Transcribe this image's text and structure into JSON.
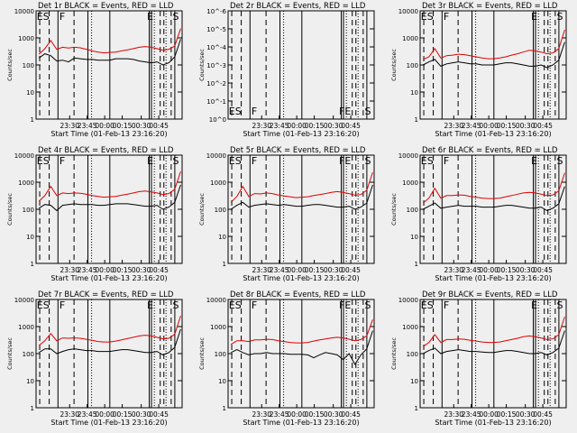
{
  "figure": {
    "background": "#efefef",
    "events_color": "#000000",
    "lld_color": "#e00000",
    "xlabel_template": "Start Time (01-Feb-13 23:16:20)",
    "ylabel": "Counts/sec"
  },
  "chart_data": [
    {
      "type": "line",
      "title": "Det 1r BLACK = Events, RED = LLD",
      "xlabel": "Start Time (01-Feb-13 23:16:20)",
      "ylabel": "Counts/sec",
      "x_ticks": [
        "23:30",
        "23:45",
        "00:00",
        "00:15",
        "00:30",
        "00:45"
      ],
      "y_ticks": [
        "1",
        "10",
        "100",
        "1000",
        "10000"
      ],
      "ylog": true,
      "ylim": [
        1,
        10000
      ],
      "empty": false,
      "event_labels": [
        "ES",
        "F",
        "E",
        "S"
      ],
      "series": [
        {
          "name": "Events",
          "values": [
            180,
            260,
            220,
            140,
            150,
            130,
            180,
            170,
            160,
            160,
            150,
            150,
            150,
            170,
            170,
            170,
            160,
            140,
            130,
            120,
            130,
            100,
            120,
            200,
            900
          ]
        },
        {
          "name": "LLD",
          "values": [
            250,
            400,
            800,
            380,
            450,
            420,
            450,
            430,
            380,
            330,
            300,
            280,
            290,
            300,
            330,
            360,
            400,
            450,
            480,
            450,
            400,
            350,
            380,
            500,
            2200
          ]
        }
      ]
    },
    {
      "type": "line",
      "title": "Det 2r BLACK = Events, RED = LLD",
      "xlabel": "Start Time (01-Feb-13 23:16:20)",
      "ylabel": "Counts/sec",
      "x_ticks": [
        "23:30",
        "23:45",
        "00:00",
        "00:15",
        "00:30",
        "00:45"
      ],
      "y_ticks": [
        "10^0",
        "10^-1",
        "10^-2",
        "10^-3",
        "10^-4",
        "10^-5",
        "10^-6"
      ],
      "ylog": true,
      "empty": true,
      "event_labels": [
        "ES",
        "F",
        "FE",
        "S"
      ],
      "series": []
    },
    {
      "type": "line",
      "title": "Det 3r BLACK = Events, RED = LLD",
      "xlabel": "Start Time (01-Feb-13 23:16:20)",
      "ylabel": "Counts/sec",
      "x_ticks": [
        "23:30",
        "23:45",
        "00:00",
        "00:15",
        "00:30",
        "00:45"
      ],
      "y_ticks": [
        "1",
        "10",
        "100",
        "1000",
        "10000"
      ],
      "ylog": true,
      "ylim": [
        1,
        10000
      ],
      "empty": false,
      "event_labels": [
        "ES",
        "F",
        "E",
        "S"
      ],
      "series": [
        {
          "name": "Events",
          "values": [
            100,
            130,
            160,
            90,
            110,
            120,
            130,
            120,
            110,
            110,
            100,
            100,
            100,
            110,
            120,
            120,
            110,
            100,
            90,
            90,
            100,
            80,
            100,
            150,
            700
          ]
        },
        {
          "name": "LLD",
          "values": [
            160,
            200,
            400,
            180,
            220,
            230,
            250,
            240,
            220,
            200,
            180,
            170,
            170,
            180,
            200,
            230,
            260,
            300,
            350,
            330,
            300,
            260,
            280,
            400,
            2000
          ]
        }
      ]
    },
    {
      "type": "line",
      "title": "Det 4r BLACK = Events, RED = LLD",
      "xlabel": "Start Time (01-Feb-13 23:16:20)",
      "ylabel": "Counts/sec",
      "x_ticks": [
        "23:30",
        "23:45",
        "00:00",
        "00:15",
        "00:30",
        "00:45"
      ],
      "y_ticks": [
        "1",
        "10",
        "100",
        "1000",
        "10000"
      ],
      "ylog": true,
      "ylim": [
        1,
        10000
      ],
      "empty": false,
      "event_labels": [
        "ES",
        "F",
        "E",
        "S"
      ],
      "series": [
        {
          "name": "Events",
          "values": [
            110,
            150,
            140,
            90,
            140,
            150,
            160,
            150,
            150,
            150,
            140,
            140,
            150,
            160,
            160,
            160,
            150,
            140,
            130,
            130,
            140,
            100,
            120,
            180,
            800
          ]
        },
        {
          "name": "LLD",
          "values": [
            200,
            320,
            700,
            320,
            400,
            380,
            400,
            390,
            360,
            320,
            300,
            280,
            290,
            300,
            330,
            360,
            400,
            450,
            470,
            440,
            400,
            350,
            380,
            550,
            2500
          ]
        }
      ]
    },
    {
      "type": "line",
      "title": "Det 5r BLACK = Events, RED = LLD",
      "xlabel": "Start Time (01-Feb-13 23:16:20)",
      "ylabel": "Counts/sec",
      "x_ticks": [
        "23:30",
        "23:45",
        "00:00",
        "00:15",
        "00:30",
        "00:45"
      ],
      "y_ticks": [
        "1",
        "10",
        "100",
        "1000",
        "10000"
      ],
      "ylog": true,
      "ylim": [
        1,
        10000
      ],
      "empty": false,
      "event_labels": [
        "ES",
        "F",
        "FE",
        "S"
      ],
      "series": [
        {
          "name": "Events",
          "values": [
            100,
            140,
            180,
            120,
            140,
            150,
            160,
            150,
            140,
            150,
            140,
            130,
            130,
            140,
            150,
            150,
            140,
            130,
            120,
            120,
            130,
            100,
            120,
            170,
            800
          ]
        },
        {
          "name": "LLD",
          "values": [
            180,
            300,
            700,
            300,
            380,
            370,
            400,
            380,
            340,
            310,
            290,
            270,
            280,
            290,
            320,
            350,
            380,
            420,
            450,
            420,
            380,
            330,
            350,
            500,
            2300
          ]
        }
      ]
    },
    {
      "type": "line",
      "title": "Det 6r BLACK = Events, RED = LLD",
      "xlabel": "Start Time (01-Feb-13 23:16:20)",
      "ylabel": "Counts/sec",
      "x_ticks": [
        "23:30",
        "23:45",
        "00:00",
        "00:15",
        "00:30",
        "00:45"
      ],
      "y_ticks": [
        "1",
        "10",
        "100",
        "1000",
        "10000"
      ],
      "ylog": true,
      "ylim": [
        1,
        10000
      ],
      "empty": false,
      "event_labels": [
        "ES",
        "F",
        "E",
        "S"
      ],
      "series": [
        {
          "name": "Events",
          "values": [
            100,
            130,
            170,
            110,
            120,
            130,
            140,
            130,
            130,
            130,
            120,
            120,
            120,
            130,
            140,
            140,
            130,
            120,
            110,
            110,
            120,
            90,
            110,
            160,
            700
          ]
        },
        {
          "name": "LLD",
          "values": [
            170,
            260,
            600,
            260,
            320,
            320,
            340,
            330,
            300,
            280,
            260,
            250,
            250,
            260,
            290,
            320,
            360,
            400,
            420,
            400,
            360,
            320,
            340,
            480,
            2200
          ]
        }
      ]
    },
    {
      "type": "line",
      "title": "Det 7r BLACK = Events, RED = LLD",
      "xlabel": "Start Time (01-Feb-13 23:16:20)",
      "ylabel": "Counts/sec",
      "x_ticks": [
        "23:30",
        "23:45",
        "00:00",
        "00:15",
        "00:30",
        "00:45"
      ],
      "y_ticks": [
        "1",
        "10",
        "100",
        "1000",
        "10000"
      ],
      "ylog": true,
      "ylim": [
        1,
        10000
      ],
      "empty": false,
      "event_labels": [
        "ES",
        "F",
        "E",
        "S"
      ],
      "series": [
        {
          "name": "Events",
          "values": [
            110,
            150,
            150,
            100,
            120,
            140,
            150,
            140,
            130,
            130,
            120,
            120,
            120,
            130,
            140,
            140,
            130,
            120,
            110,
            110,
            120,
            90,
            110,
            170,
            800
          ]
        },
        {
          "name": "LLD",
          "values": [
            200,
            300,
            550,
            300,
            380,
            370,
            380,
            370,
            340,
            310,
            280,
            270,
            270,
            290,
            320,
            360,
            400,
            450,
            480,
            450,
            400,
            350,
            370,
            520,
            2500
          ]
        }
      ]
    },
    {
      "type": "line",
      "title": "Det 8r BLACK = Events, RED = LLD",
      "xlabel": "Start Time (01-Feb-13 23:16:20)",
      "ylabel": "Counts/sec",
      "x_ticks": [
        "23:30",
        "23:45",
        "00:00",
        "00:15",
        "00:30",
        "00:45"
      ],
      "y_ticks": [
        "1",
        "10",
        "100",
        "1000",
        "10000"
      ],
      "ylog": true,
      "ylim": [
        1,
        10000
      ],
      "empty": false,
      "event_labels": [
        "ES",
        "F",
        "FE",
        "S"
      ],
      "series": [
        {
          "name": "Events",
          "values": [
            110,
            140,
            110,
            90,
            100,
            100,
            110,
            100,
            100,
            100,
            95,
            95,
            95,
            90,
            70,
            90,
            110,
            100,
            90,
            60,
            100,
            40,
            90,
            150,
            700
          ]
        },
        {
          "name": "LLD",
          "values": [
            220,
            300,
            300,
            280,
            320,
            320,
            340,
            330,
            300,
            280,
            260,
            250,
            250,
            260,
            290,
            320,
            350,
            380,
            400,
            380,
            340,
            300,
            330,
            450,
            1800
          ]
        }
      ]
    },
    {
      "type": "line",
      "title": "Det 9r BLACK = Events, RED = LLD",
      "xlabel": "Start Time (01-Feb-13 23:16:20)",
      "ylabel": "Counts/sec",
      "x_ticks": [
        "23:30",
        "23:45",
        "00:00",
        "00:15",
        "00:30",
        "00:45"
      ],
      "y_ticks": [
        "1",
        "10",
        "100",
        "1000",
        "10000"
      ],
      "ylog": true,
      "ylim": [
        1,
        10000
      ],
      "empty": false,
      "event_labels": [
        "ES",
        "F",
        "E",
        "S"
      ],
      "series": [
        {
          "name": "Events",
          "values": [
            100,
            130,
            160,
            100,
            120,
            130,
            140,
            130,
            120,
            120,
            115,
            110,
            110,
            120,
            130,
            130,
            120,
            110,
            100,
            100,
            110,
            90,
            110,
            160,
            700
          ]
        },
        {
          "name": "LLD",
          "values": [
            180,
            260,
            500,
            260,
            330,
            330,
            350,
            340,
            310,
            290,
            270,
            260,
            260,
            270,
            300,
            330,
            370,
            420,
            450,
            420,
            380,
            330,
            350,
            500,
            2300
          ]
        }
      ]
    }
  ]
}
